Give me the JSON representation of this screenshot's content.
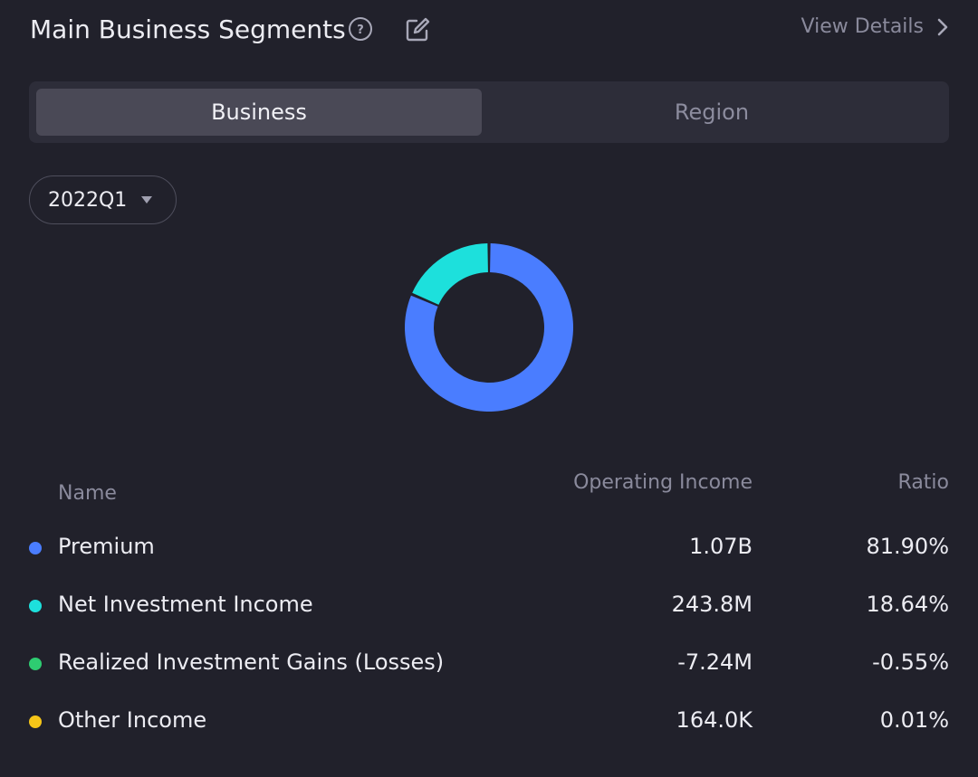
{
  "header": {
    "title": "Main Business Segments",
    "view_details": "View Details"
  },
  "tabs": [
    {
      "label": "Business",
      "active": true
    },
    {
      "label": "Region",
      "active": false
    }
  ],
  "period": {
    "selected": "2022Q1"
  },
  "table": {
    "headers": {
      "name": "Name",
      "income": "Operating Income",
      "ratio": "Ratio"
    },
    "rows": [
      {
        "name": "Premium",
        "income": "1.07B",
        "ratio": "81.90%",
        "color": "#4a7dff"
      },
      {
        "name": "Net Investment Income",
        "income": "243.8M",
        "ratio": "18.64%",
        "color": "#1de0dc"
      },
      {
        "name": "Realized Investment Gains (Losses)",
        "income": "-7.24M",
        "ratio": "-0.55%",
        "color": "#2ecc71"
      },
      {
        "name": "Other Income",
        "income": "164.0K",
        "ratio": "0.01%",
        "color": "#f5c518"
      }
    ]
  },
  "chart_data": {
    "type": "pie",
    "categories": [
      "Premium",
      "Net Investment Income"
    ],
    "values": [
      81.9,
      18.64
    ],
    "colors": [
      "#4a7dff",
      "#1de0dc"
    ]
  }
}
